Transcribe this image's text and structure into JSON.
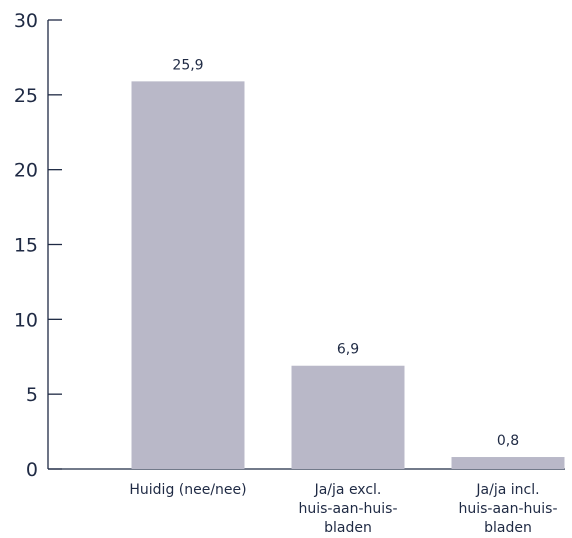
{
  "colors": {
    "bar": "#b9b8c8",
    "axis": "#1f2a44",
    "text": "#1f2a44"
  },
  "chart_data": {
    "type": "bar",
    "title": "",
    "xlabel": "",
    "ylabel": "",
    "ylim": [
      0,
      30
    ],
    "yticks": [
      0,
      5,
      10,
      15,
      20,
      25,
      30
    ],
    "grid": false,
    "categories": [
      [
        "Huidig (nee/nee)"
      ],
      [
        "Ja/ja excl.",
        "huis-aan-huis-",
        "bladen"
      ],
      [
        "Ja/ja incl.",
        "huis-aan-huis-",
        "bladen"
      ]
    ],
    "values": [
      25.9,
      6.9,
      0.8
    ],
    "value_labels": [
      "25,9",
      "6,9",
      "0,8"
    ]
  }
}
